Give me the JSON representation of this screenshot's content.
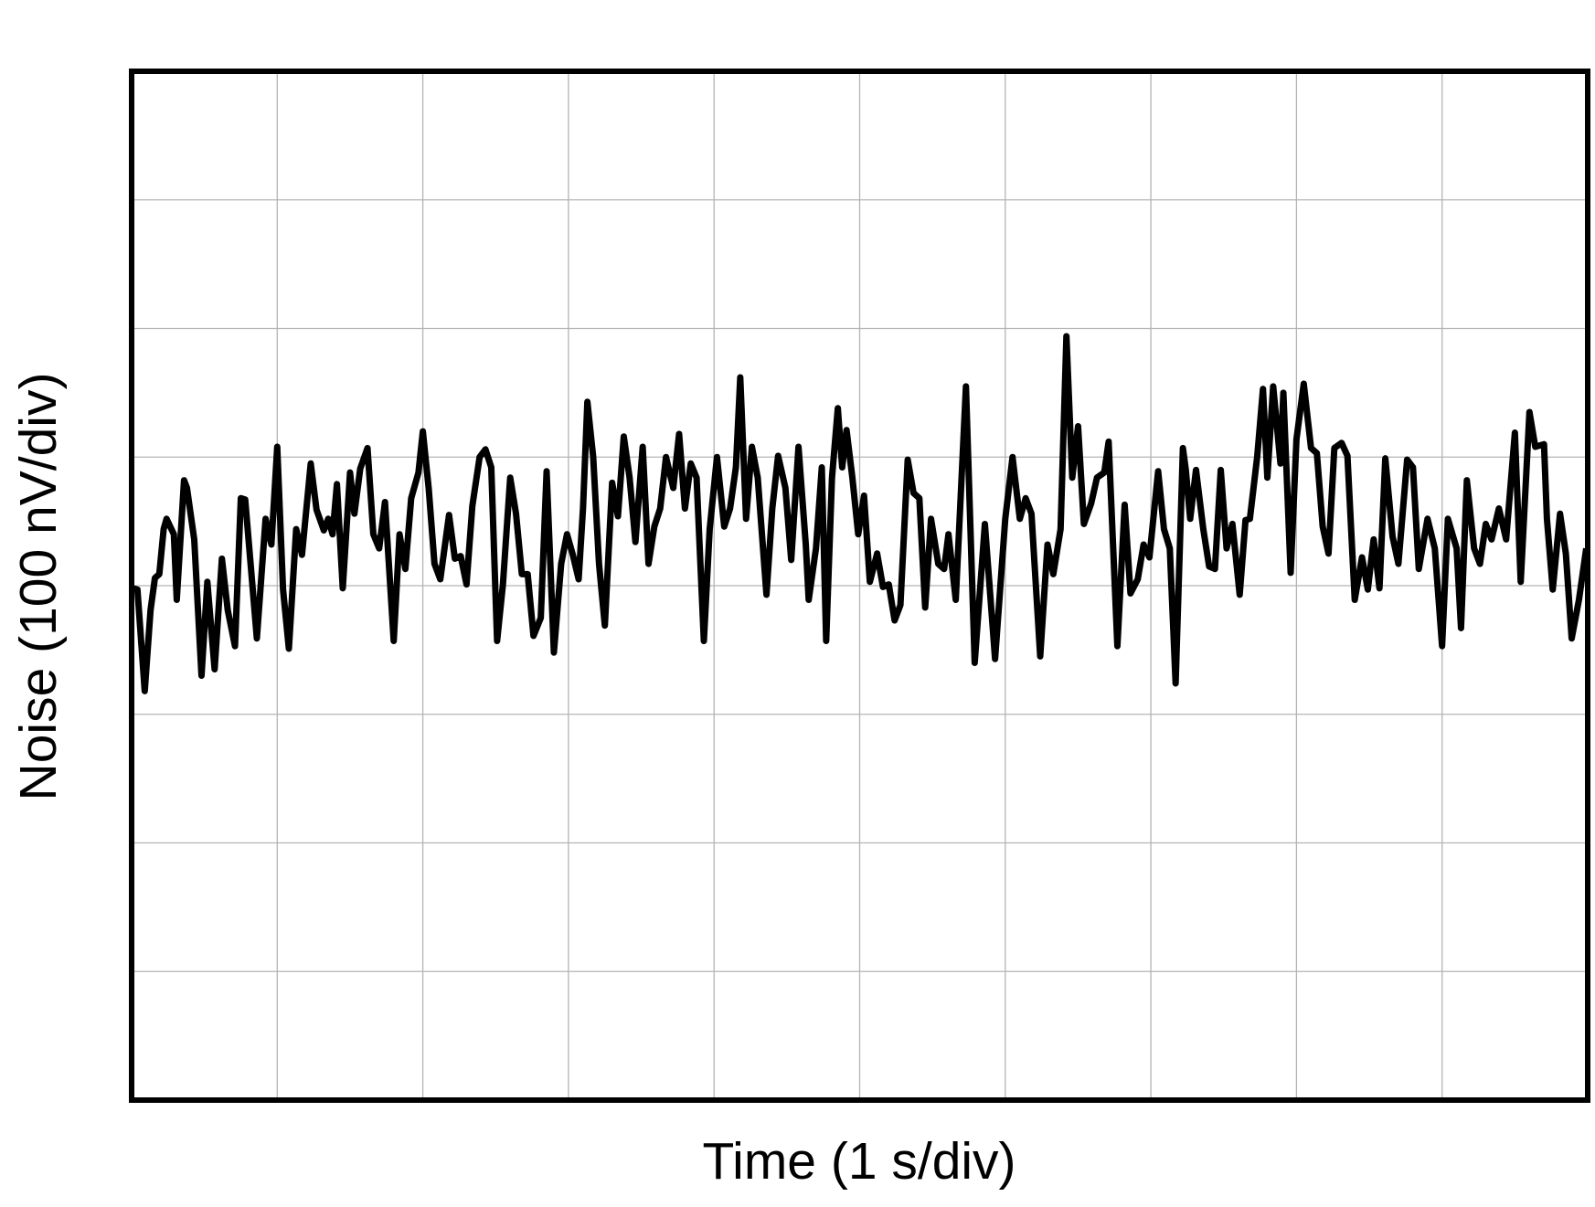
{
  "chart_data": {
    "type": "line",
    "xlabel": "Time (1 s/div)",
    "ylabel": "Noise (100 nV/div)",
    "xlim": [
      0,
      10
    ],
    "ylim": [
      -4,
      4
    ],
    "xticks": [
      0,
      1,
      2,
      3,
      4,
      5,
      6,
      7,
      8,
      9,
      10
    ],
    "yticks": [
      -4,
      -3,
      -2,
      -1,
      0,
      1,
      2,
      3,
      4
    ],
    "tick_labels": false,
    "grid": true,
    "color": "#000000",
    "x": [
      0.01,
      0.04,
      0.09,
      0.13,
      0.16,
      0.19,
      0.22,
      0.24,
      0.29,
      0.31,
      0.36,
      0.38,
      0.43,
      0.48,
      0.52,
      0.57,
      0.62,
      0.66,
      0.71,
      0.75,
      0.78,
      0.82,
      0.86,
      0.92,
      0.96,
      1.0,
      1.04,
      1.08,
      1.13,
      1.17,
      1.23,
      1.27,
      1.32,
      1.35,
      1.38,
      1.41,
      1.45,
      1.5,
      1.53,
      1.57,
      1.62,
      1.66,
      1.7,
      1.74,
      1.8,
      1.84,
      1.88,
      1.92,
      1.97,
      2.0,
      2.04,
      2.08,
      2.12,
      2.18,
      2.22,
      2.26,
      2.3,
      2.34,
      2.39,
      2.43,
      2.47,
      2.51,
      2.55,
      2.6,
      2.64,
      2.68,
      2.72,
      2.76,
      2.81,
      2.85,
      2.9,
      2.95,
      2.99,
      3.03,
      3.07,
      3.1,
      3.13,
      3.17,
      3.21,
      3.25,
      3.3,
      3.34,
      3.38,
      3.42,
      3.46,
      3.51,
      3.55,
      3.59,
      3.63,
      3.67,
      3.72,
      3.76,
      3.8,
      3.84,
      3.88,
      3.93,
      3.97,
      4.02,
      4.07,
      4.11,
      4.15,
      4.18,
      4.22,
      4.26,
      4.3,
      4.36,
      4.4,
      4.44,
      4.49,
      4.53,
      4.58,
      4.63,
      4.65,
      4.7,
      4.74,
      4.77,
      4.81,
      4.85,
      4.88,
      4.91,
      4.95,
      4.99,
      5.03,
      5.07,
      5.12,
      5.16,
      5.2,
      5.24,
      5.28,
      5.33,
      5.37,
      5.41,
      5.45,
      5.49,
      5.54,
      5.58,
      5.61,
      5.66,
      5.73,
      5.79,
      5.86,
      5.93,
      6.0,
      6.05,
      6.1,
      6.14,
      6.18,
      6.24,
      6.29,
      6.33,
      6.38,
      6.42,
      6.46,
      6.5,
      6.54,
      6.59,
      6.63,
      6.68,
      6.71,
      6.77,
      6.82,
      6.86,
      6.91,
      6.95,
      6.99,
      7.05,
      7.09,
      7.13,
      7.17,
      7.22,
      7.24,
      7.27,
      7.31,
      7.36,
      7.4,
      7.44,
      7.48,
      7.52,
      7.56,
      7.61,
      7.65,
      7.68,
      7.73,
      7.77,
      7.8,
      7.84,
      7.89,
      7.91,
      7.96,
      8.0,
      8.05,
      8.1,
      8.14,
      8.18,
      8.22,
      8.26,
      8.31,
      8.35,
      8.4,
      8.45,
      8.49,
      8.53,
      8.57,
      8.61,
      8.66,
      8.7,
      8.76,
      8.8,
      8.84,
      8.9,
      8.95,
      9.0,
      9.04,
      9.1,
      9.13,
      9.17,
      9.22,
      9.26,
      9.3,
      9.34,
      9.39,
      9.44,
      9.5,
      9.54,
      9.6,
      9.64,
      9.7,
      9.72,
      9.76,
      9.81,
      9.85,
      9.89,
      9.94,
      9.99
    ],
    "values": [
      -0.02,
      -0.03,
      -0.82,
      -0.19,
      0.06,
      0.09,
      0.44,
      0.52,
      0.4,
      -0.11,
      0.82,
      0.76,
      0.36,
      -0.7,
      0.03,
      -0.65,
      0.21,
      -0.19,
      -0.47,
      0.68,
      0.67,
      0.13,
      -0.41,
      0.52,
      0.32,
      1.08,
      -0.03,
      -0.49,
      0.44,
      0.24,
      0.95,
      0.59,
      0.43,
      0.52,
      0.4,
      0.79,
      -0.02,
      0.88,
      0.56,
      0.91,
      1.07,
      0.4,
      0.29,
      0.65,
      -0.43,
      0.4,
      0.13,
      0.68,
      0.88,
      1.2,
      0.76,
      0.17,
      0.05,
      0.55,
      0.21,
      0.23,
      0.01,
      0.62,
      1.0,
      1.06,
      0.92,
      -0.43,
      0.01,
      0.84,
      0.56,
      0.09,
      0.09,
      -0.39,
      -0.25,
      0.89,
      -0.52,
      0.17,
      0.4,
      0.24,
      0.05,
      0.6,
      1.43,
      1.0,
      0.17,
      -0.31,
      0.8,
      0.54,
      1.16,
      0.84,
      0.34,
      1.08,
      0.17,
      0.46,
      0.6,
      1.0,
      0.76,
      1.18,
      0.6,
      0.95,
      0.84,
      -0.43,
      0.44,
      1.0,
      0.46,
      0.6,
      0.92,
      1.62,
      0.52,
      1.08,
      0.84,
      -0.07,
      0.6,
      1.01,
      0.76,
      0.2,
      1.08,
      0.32,
      -0.11,
      0.29,
      0.92,
      -0.43,
      0.84,
      1.38,
      0.92,
      1.21,
      0.84,
      0.4,
      0.7,
      0.03,
      0.25,
      -0.01,
      0.01,
      -0.27,
      -0.15,
      0.98,
      0.72,
      0.68,
      -0.17,
      0.52,
      0.17,
      0.13,
      0.4,
      -0.11,
      1.55,
      -0.6,
      0.48,
      -0.57,
      0.52,
      1.0,
      0.52,
      0.68,
      0.56,
      -0.55,
      0.32,
      0.09,
      0.44,
      1.94,
      0.84,
      1.24,
      0.48,
      0.64,
      0.84,
      0.88,
      1.12,
      -0.47,
      0.63,
      -0.06,
      0.05,
      0.32,
      0.22,
      0.89,
      0.44,
      0.29,
      -0.76,
      1.07,
      0.9,
      0.52,
      0.9,
      0.44,
      0.15,
      0.13,
      0.9,
      0.29,
      0.48,
      -0.07,
      0.51,
      0.52,
      1.0,
      1.53,
      0.84,
      1.55,
      0.95,
      1.5,
      0.1,
      1.14,
      1.57,
      1.07,
      1.03,
      0.46,
      0.25,
      1.07,
      1.11,
      1.01,
      -0.11,
      0.22,
      -0.03,
      0.36,
      -0.02,
      0.99,
      0.38,
      0.17,
      0.98,
      0.92,
      0.13,
      0.52,
      0.29,
      -0.47,
      0.52,
      0.29,
      -0.33,
      0.82,
      0.29,
      0.17,
      0.48,
      0.36,
      0.6,
      0.36,
      1.19,
      0.03,
      1.35,
      1.08,
      1.1,
      0.52,
      -0.03,
      0.56,
      0.25,
      -0.41,
      -0.11,
      0.29
    ]
  }
}
